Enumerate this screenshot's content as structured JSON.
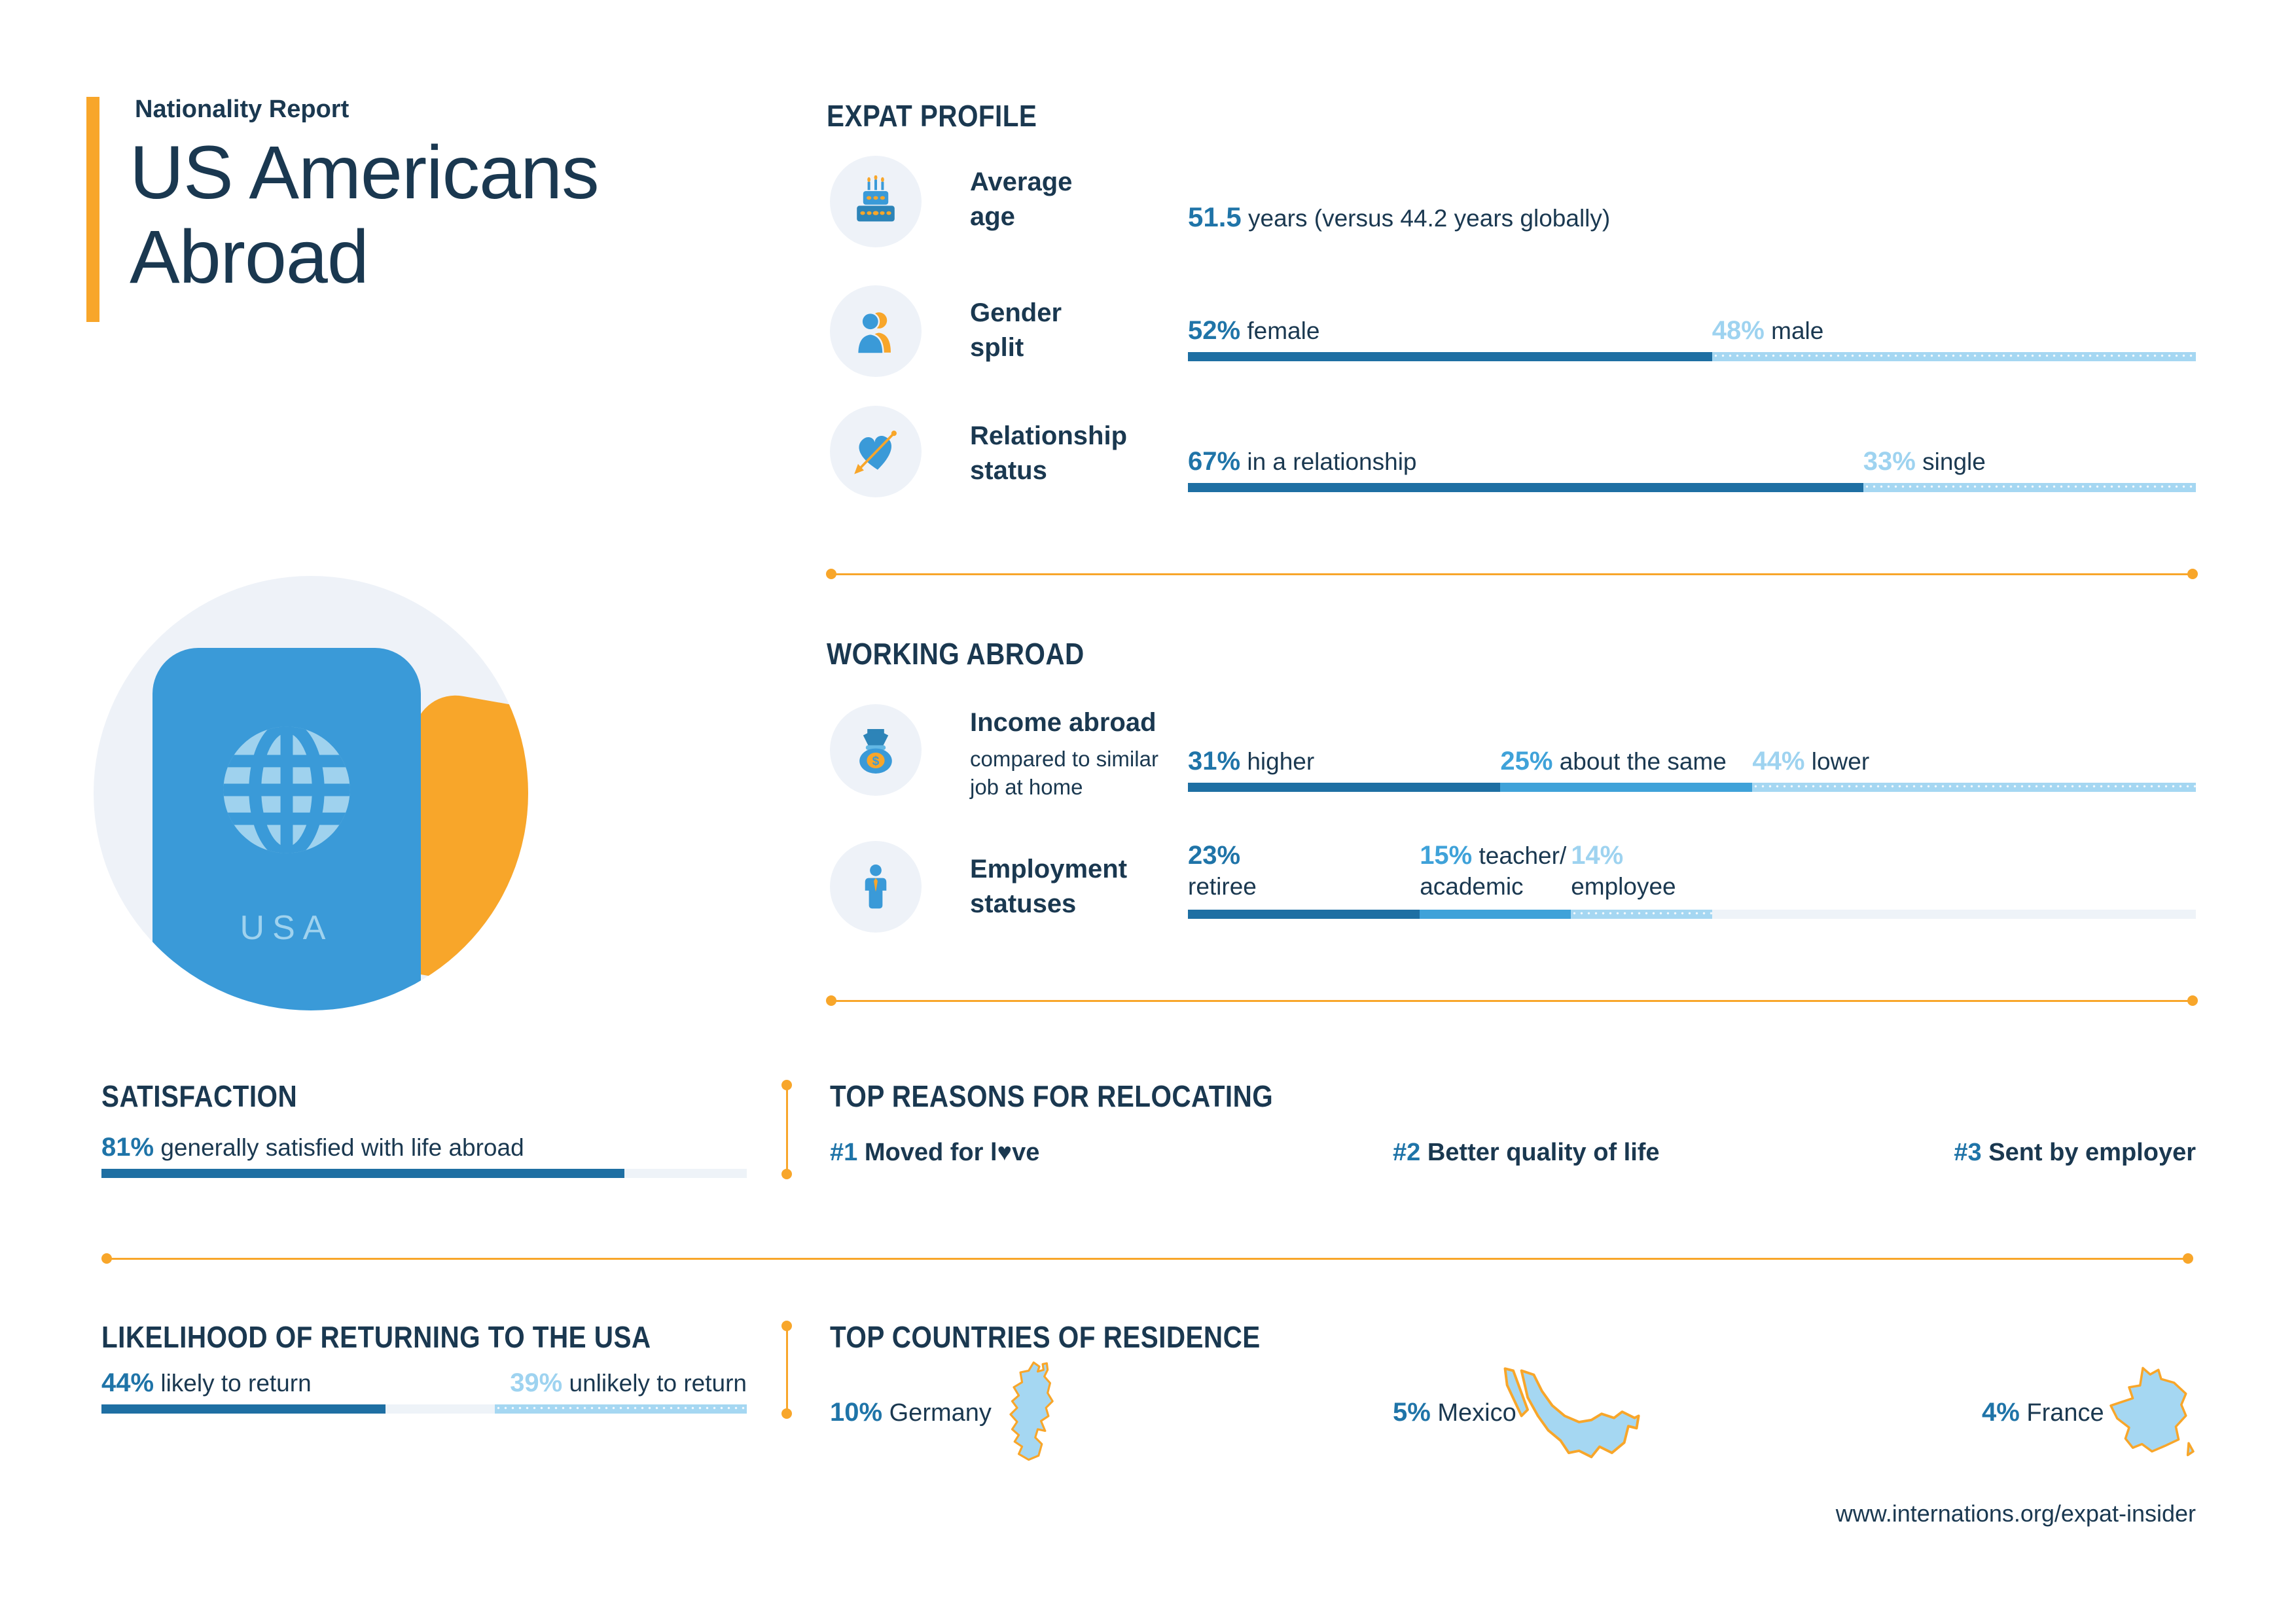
{
  "colors": {
    "navy": "#1a3850",
    "blue-dark": "#1e6fa3",
    "blue-medium": "#3fa2d9",
    "blue-light": "#a5d7f2",
    "blue-pale": "#eef3f8",
    "pct-blue": "#1f74a8",
    "pct-light": "#9ed3f0",
    "orange": "#f8a62a",
    "icon-blue": "#3a9ad8",
    "icon-blue-dark": "#2d84b8",
    "icon-circle-bg": "#eef2f8",
    "passport-light": "#9fd2ee"
  },
  "header": {
    "kicker": "Nationality Report",
    "title": "US Americans Abroad"
  },
  "passport": {
    "label": "USA"
  },
  "expat_profile": {
    "heading": "EXPAT PROFILE",
    "average_age": {
      "label": "Average age",
      "value": "51.5",
      "text": "years (versus 44.2 years globally)"
    },
    "gender_split": {
      "label": "Gender split",
      "segments": [
        {
          "value": 52,
          "pct": "52%",
          "label": "female",
          "tone": "dark"
        },
        {
          "value": 48,
          "pct": "48%",
          "label": "male",
          "tone": "light"
        }
      ]
    },
    "relationship_status": {
      "label": "Relationship status",
      "segments": [
        {
          "value": 67,
          "pct": "67%",
          "label": "in a relationship",
          "tone": "dark"
        },
        {
          "value": 33,
          "pct": "33%",
          "label": "single",
          "tone": "light"
        }
      ]
    }
  },
  "working_abroad": {
    "heading": "WORKING ABROAD",
    "income": {
      "label": "Income abroad",
      "sublabel": "compared to similar job at home",
      "segments": [
        {
          "value": 31,
          "pct": "31%",
          "label": "higher",
          "tone": "dark"
        },
        {
          "value": 25,
          "pct": "25%",
          "label": "about the same",
          "tone": "medium"
        },
        {
          "value": 44,
          "pct": "44%",
          "label": "lower",
          "tone": "light"
        }
      ]
    },
    "employment": {
      "label": "Employment statuses",
      "segments": [
        {
          "value": 23,
          "pct": "23%",
          "label2": "retiree",
          "tone": "dark"
        },
        {
          "value": 15,
          "pct": "15%",
          "label": "teacher/",
          "label2": "academic",
          "tone": "medium"
        },
        {
          "value": 14,
          "pct": "14%",
          "label2": "employee",
          "tone": "light"
        },
        {
          "value": 48,
          "tone": "pale"
        }
      ]
    }
  },
  "satisfaction": {
    "heading": "SATISFACTION",
    "segments": [
      {
        "value": 81,
        "pct": "81%",
        "label": "generally satisfied with life abroad",
        "tone": "dark"
      },
      {
        "value": 19,
        "tone": "pale"
      }
    ]
  },
  "top_reasons": {
    "heading": "TOP REASONS FOR RELOCATING",
    "items": [
      {
        "rank": "#1",
        "label": "Moved for l♥ve"
      },
      {
        "rank": "#2",
        "label": "Better quality of life"
      },
      {
        "rank": "#3",
        "label": "Sent by employer"
      }
    ]
  },
  "likelihood_return": {
    "heading": "LIKELIHOOD OF RETURNING TO THE USA",
    "segments": [
      {
        "value": 44,
        "pct": "44%",
        "label": "likely to return",
        "tone": "dark"
      },
      {
        "value": 17,
        "tone": "pale"
      },
      {
        "value": 39,
        "pct": "39%",
        "label": "unlikely to return",
        "tone": "light",
        "align": "right"
      }
    ]
  },
  "top_countries": {
    "heading": "TOP COUNTRIES OF RESIDENCE",
    "items": [
      {
        "pct": "10%",
        "name": "Germany"
      },
      {
        "pct": "5%",
        "name": "Mexico"
      },
      {
        "pct": "4%",
        "name": "France"
      }
    ]
  },
  "footer": {
    "url": "www.internations.org/expat-insider"
  },
  "chart_data": [
    {
      "type": "bar",
      "title": "Gender split",
      "categories": [
        "female",
        "male"
      ],
      "values": [
        52,
        48
      ],
      "unit": "%"
    },
    {
      "type": "bar",
      "title": "Relationship status",
      "categories": [
        "in a relationship",
        "single"
      ],
      "values": [
        67,
        33
      ],
      "unit": "%"
    },
    {
      "type": "bar",
      "title": "Income abroad compared to similar job at home",
      "categories": [
        "higher",
        "about the same",
        "lower"
      ],
      "values": [
        31,
        25,
        44
      ],
      "unit": "%"
    },
    {
      "type": "bar",
      "title": "Employment statuses",
      "categories": [
        "retiree",
        "teacher/academic",
        "employee"
      ],
      "values": [
        23,
        15,
        14
      ],
      "unit": "%"
    },
    {
      "type": "bar",
      "title": "Satisfaction",
      "categories": [
        "generally satisfied with life abroad"
      ],
      "values": [
        81
      ],
      "unit": "%"
    },
    {
      "type": "bar",
      "title": "Likelihood of returning to the USA",
      "categories": [
        "likely to return",
        "unlikely to return"
      ],
      "values": [
        44,
        39
      ],
      "unit": "%"
    },
    {
      "type": "bar",
      "title": "Top countries of residence",
      "categories": [
        "Germany",
        "Mexico",
        "France"
      ],
      "values": [
        10,
        5,
        4
      ],
      "unit": "%"
    },
    {
      "type": "table",
      "title": "Average age",
      "rows": [
        [
          "US Americans abroad",
          "51.5 years"
        ],
        [
          "global average",
          "44.2 years"
        ]
      ]
    }
  ]
}
